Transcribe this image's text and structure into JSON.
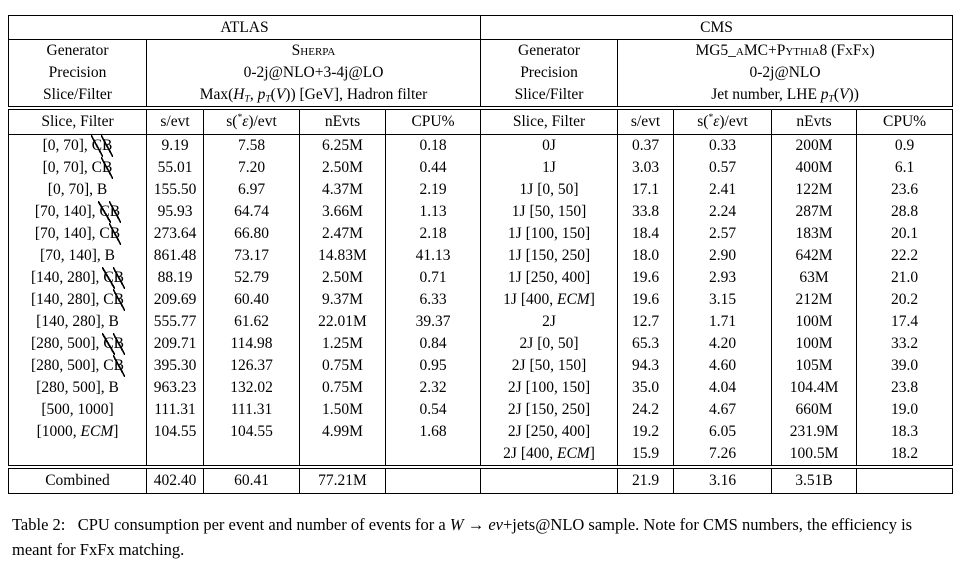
{
  "colors": {
    "background": "#ffffff",
    "text": "#000000",
    "rule": "#000000"
  },
  "atlas": {
    "title": "ATLAS",
    "generator_label": "Generator",
    "generator_value": "Sherpa",
    "precision_label": "Precision",
    "precision_value": "0-2j@NLO+3-4j@LO",
    "slice_label": "Slice/Filter",
    "slice_value_html": "Max(<i>H<sub>T</sub></i>, <i>p<sub>T</sub></i>(<i>V</i>)) [GeV], Hadron filter",
    "columns_html": [
      "Slice, Filter",
      "s/evt",
      "s(<sup>*</sup><i>ε</i>)/evt",
      "nEvts",
      "CPU%"
    ],
    "rows": [
      {
        "label_html": "[0, 70], <span class=\"neg\">C</span><span class=\"neg\">B</span>",
        "values": [
          "9.19",
          "7.58",
          "6.25M",
          "0.18"
        ]
      },
      {
        "label_html": "[0, 70], C<span class=\"neg\">B</span>",
        "values": [
          "55.01",
          "7.20",
          "2.50M",
          "0.44"
        ]
      },
      {
        "label_html": "[0, 70], B",
        "values": [
          "155.50",
          "6.97",
          "4.37M",
          "2.19"
        ]
      },
      {
        "label_html": "[70, 140], <span class=\"neg\">C</span><span class=\"neg\">B</span>",
        "values": [
          "95.93",
          "64.74",
          "3.66M",
          "1.13"
        ]
      },
      {
        "label_html": "[70, 140], C<span class=\"neg\">B</span>",
        "values": [
          "273.64",
          "66.80",
          "2.47M",
          "2.18"
        ]
      },
      {
        "label_html": "[70, 140], B",
        "values": [
          "861.48",
          "73.17",
          "14.83M",
          "41.13"
        ]
      },
      {
        "label_html": "[140, 280], <span class=\"neg\">C</span><span class=\"neg\">B</span>",
        "values": [
          "88.19",
          "52.79",
          "2.50M",
          "0.71"
        ]
      },
      {
        "label_html": "[140, 280], C<span class=\"neg\">B</span>",
        "values": [
          "209.69",
          "60.40",
          "9.37M",
          "6.33"
        ]
      },
      {
        "label_html": "[140, 280], B",
        "values": [
          "555.77",
          "61.62",
          "22.01M",
          "39.37"
        ]
      },
      {
        "label_html": "[280, 500], <span class=\"neg\">C</span><span class=\"neg\">B</span>",
        "values": [
          "209.71",
          "114.98",
          "1.25M",
          "0.84"
        ]
      },
      {
        "label_html": "[280, 500], C<span class=\"neg\">B</span>",
        "values": [
          "395.30",
          "126.37",
          "0.75M",
          "0.95"
        ]
      },
      {
        "label_html": "[280, 500], B",
        "values": [
          "963.23",
          "132.02",
          "0.75M",
          "2.32"
        ]
      },
      {
        "label_html": "[500, 1000]",
        "values": [
          "111.31",
          "111.31",
          "1.50M",
          "0.54"
        ]
      },
      {
        "label_html": "[1000, <i>ECM</i>]",
        "values": [
          "104.55",
          "104.55",
          "4.99M",
          "1.68"
        ]
      },
      {
        "label_html": "",
        "values": [
          "",
          "",
          "",
          ""
        ]
      }
    ],
    "combined": {
      "label_html": "Combined",
      "values": [
        "402.40",
        "60.41",
        "77.21M",
        ""
      ]
    }
  },
  "cms": {
    "title": "CMS",
    "generator_label": "Generator",
    "generator_value": "MG5_aMC+Pythia8 (FxFx)",
    "precision_label": "Precision",
    "precision_value": "0-2j@NLO",
    "slice_label": "Slice/Filter",
    "slice_value_html": "Jet number, LHE <i>p<sub>T</sub></i>(<i>V</i>))",
    "columns_html": [
      "Slice, Filter",
      "s/evt",
      "s(<sup>*</sup><i>ε</i>)/evt",
      "nEvts",
      "CPU%"
    ],
    "rows": [
      {
        "label_html": "0J",
        "values": [
          "0.37",
          "0.33",
          "200M",
          "0.9"
        ]
      },
      {
        "label_html": "1J",
        "values": [
          "3.03",
          "0.57",
          "400M",
          "6.1"
        ]
      },
      {
        "label_html": "1J [0, 50]",
        "values": [
          "17.1",
          "2.41",
          "122M",
          "23.6"
        ]
      },
      {
        "label_html": "1J [50, 150]",
        "values": [
          "33.8",
          "2.24",
          "287M",
          "28.8"
        ]
      },
      {
        "label_html": "1J [100, 150]",
        "values": [
          "18.4",
          "2.57",
          "183M",
          "20.1"
        ]
      },
      {
        "label_html": "1J [150, 250]",
        "values": [
          "18.0",
          "2.90",
          "642M",
          "22.2"
        ]
      },
      {
        "label_html": "1J [250, 400]",
        "values": [
          "19.6",
          "2.93",
          "63M",
          "21.0"
        ]
      },
      {
        "label_html": "1J [400, <i>ECM</i>]",
        "values": [
          "19.6",
          "3.15",
          "212M",
          "20.2"
        ]
      },
      {
        "label_html": "2J",
        "values": [
          "12.7",
          "1.71",
          "100M",
          "17.4"
        ]
      },
      {
        "label_html": "2J [0, 50]",
        "values": [
          "65.3",
          "4.20",
          "100M",
          "33.2"
        ]
      },
      {
        "label_html": "2J [50, 150]",
        "values": [
          "94.3",
          "4.60",
          "105M",
          "39.0"
        ]
      },
      {
        "label_html": "2J [100, 150]",
        "values": [
          "35.0",
          "4.04",
          "104.4M",
          "23.8"
        ]
      },
      {
        "label_html": "2J [150, 250]",
        "values": [
          "24.2",
          "4.67",
          "660M",
          "19.0"
        ]
      },
      {
        "label_html": "2J [250, 400]",
        "values": [
          "19.2",
          "6.05",
          "231.9M",
          "18.3"
        ]
      },
      {
        "label_html": "2J [400, <i>ECM</i>]",
        "values": [
          "15.9",
          "7.26",
          "100.5M",
          "18.2"
        ]
      }
    ],
    "combined": {
      "label_html": "",
      "values": [
        "21.9",
        "3.16",
        "3.51B",
        ""
      ]
    }
  },
  "caption_html": "Table 2:&nbsp;&nbsp; CPU consumption per event and number of events for a <i>W</i> → <i>eν</i>+jets@NLO sample. Note for CMS numbers, the efficiency is meant for FxFx matching."
}
